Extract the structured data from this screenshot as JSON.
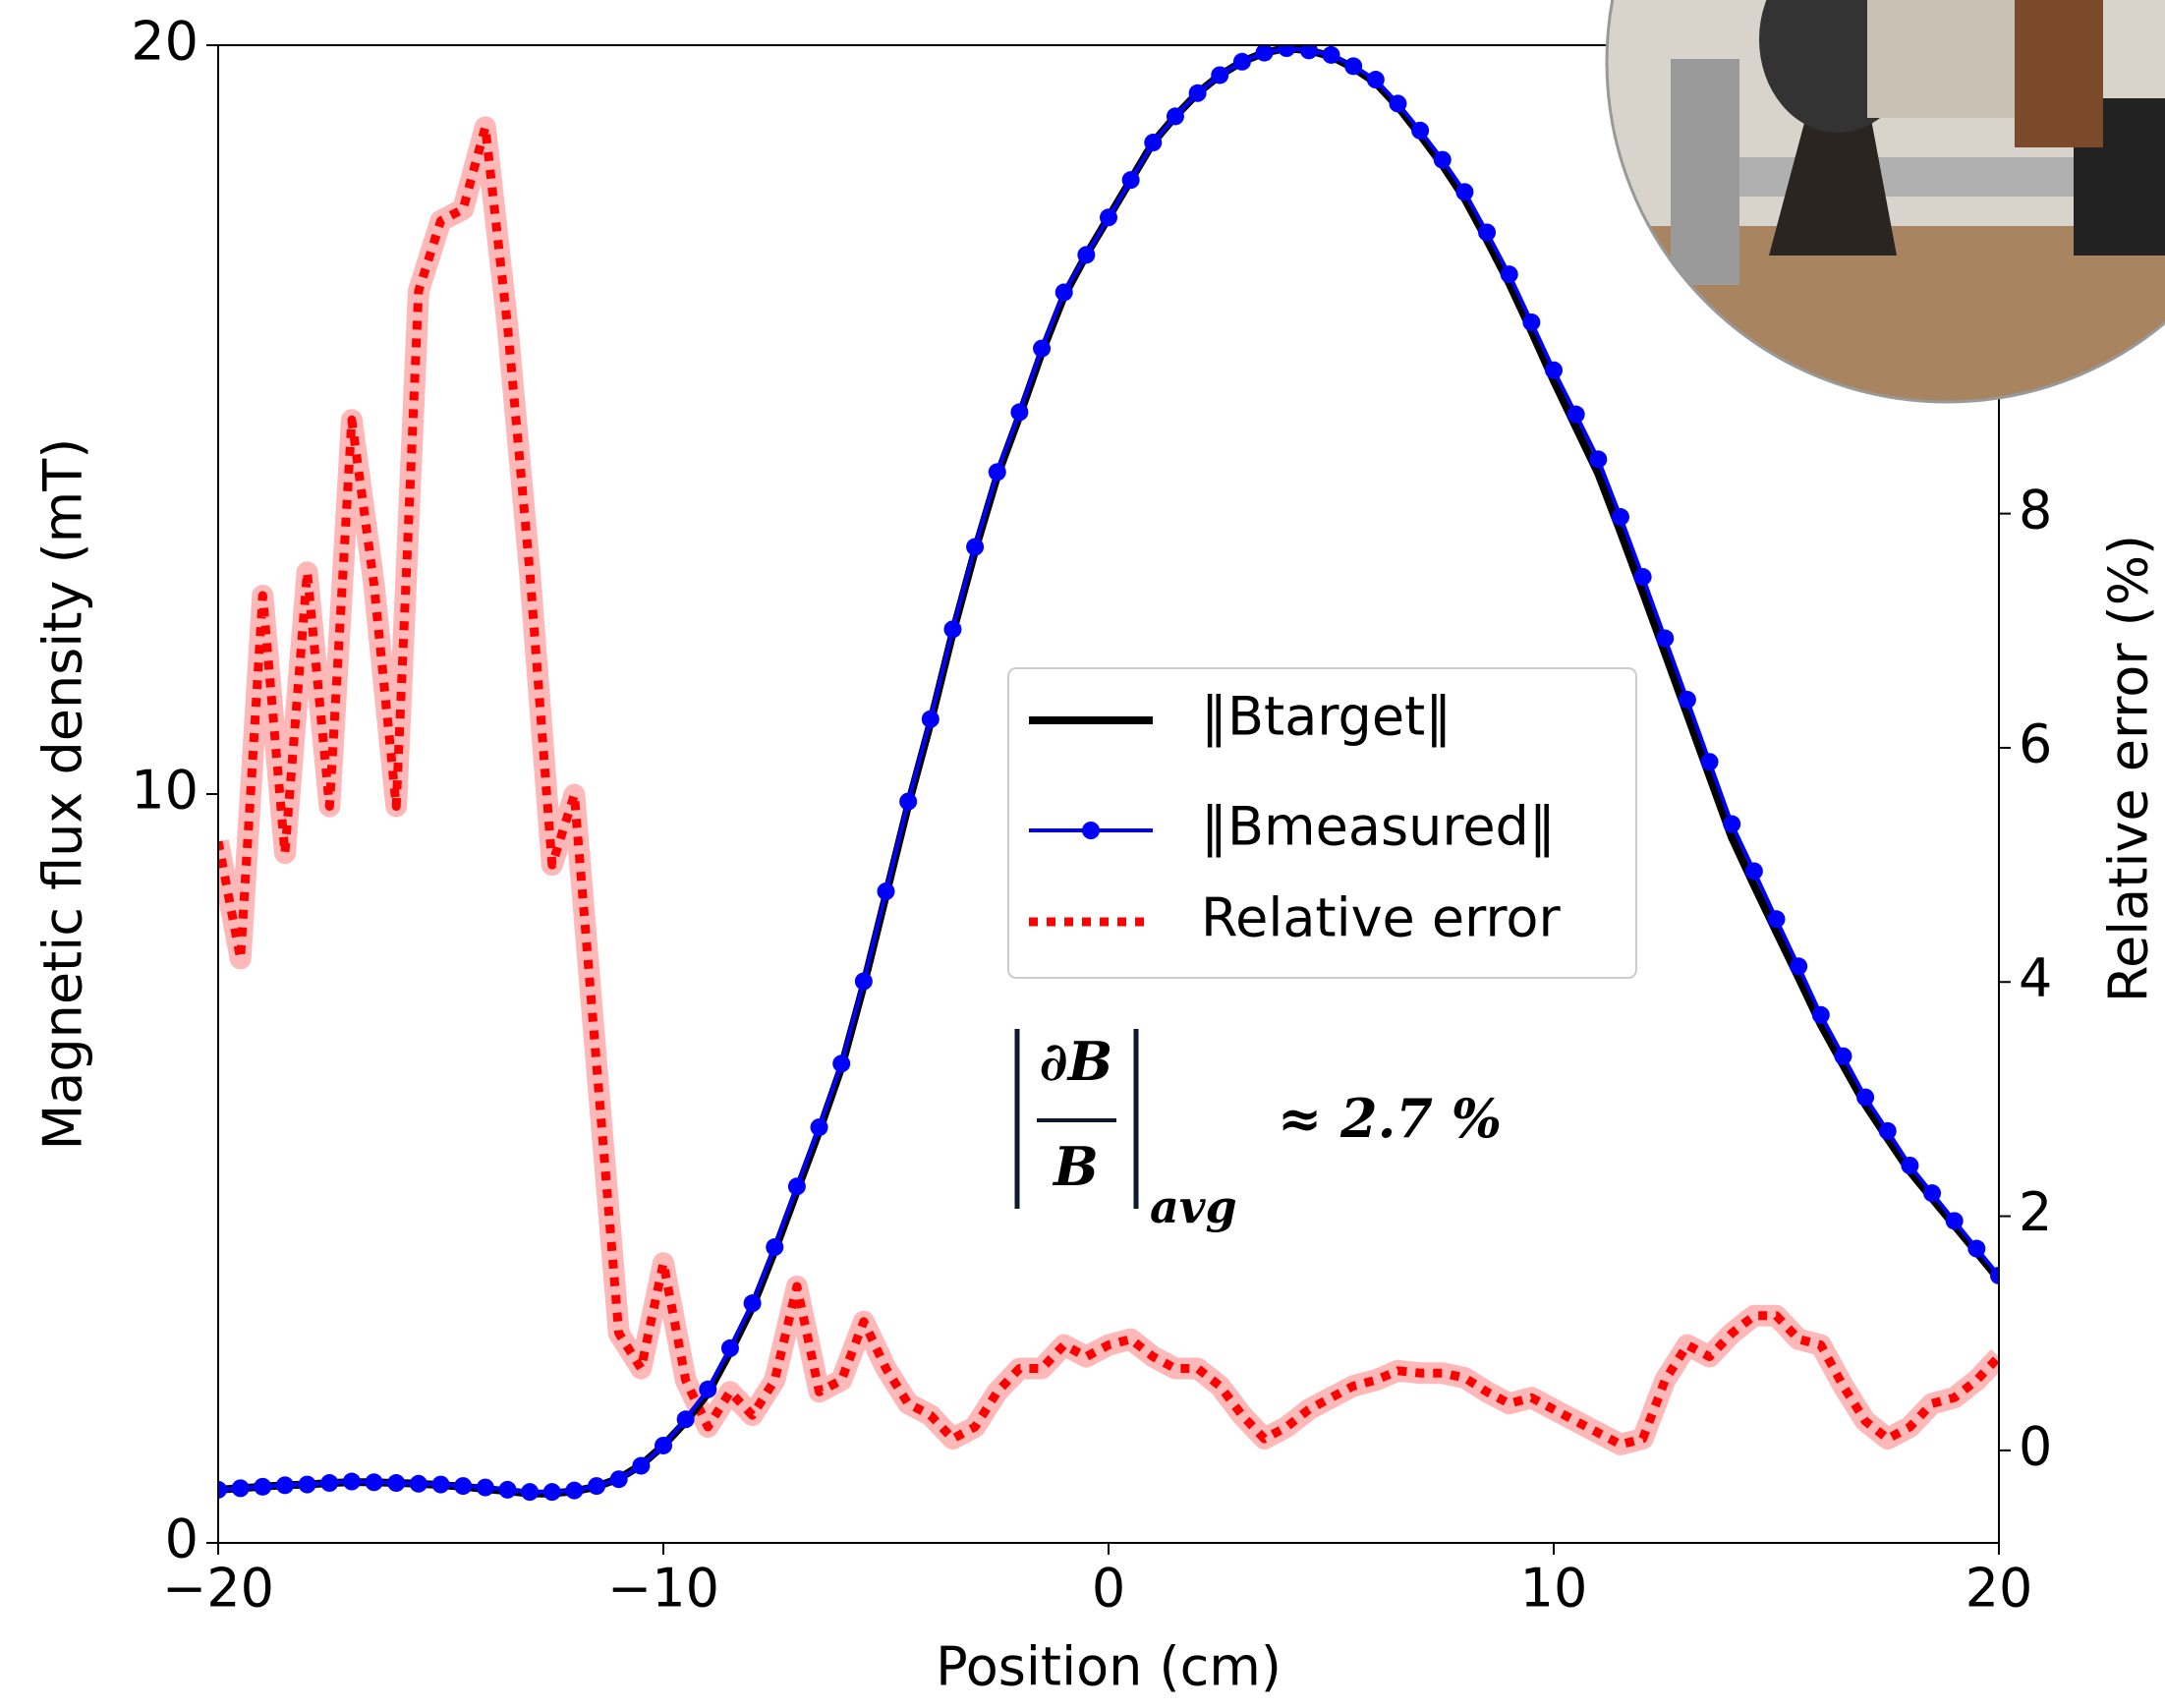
{
  "chart_data": {
    "type": "line",
    "x": [
      -20,
      -19.5,
      -19,
      -18.5,
      -18,
      -17.5,
      -17,
      -16.5,
      -16,
      -15.5,
      -15,
      -14.5,
      -14,
      -13.5,
      -13,
      -12.5,
      -12,
      -11.5,
      -11,
      -10.5,
      -10,
      -9.5,
      -9,
      -8.5,
      -8,
      -7.5,
      -7,
      -6.5,
      -6,
      -5.5,
      -5,
      -4.5,
      -4,
      -3.5,
      -3,
      -2.5,
      -2,
      -1.5,
      -1,
      -0.5,
      0,
      0.5,
      1,
      1.5,
      2,
      2.5,
      3,
      3.5,
      4,
      4.5,
      5,
      5.5,
      6,
      6.5,
      7,
      7.5,
      8,
      8.5,
      9,
      9.5,
      10,
      10.5,
      11,
      11.5,
      12,
      12.5,
      13,
      13.5,
      14,
      14.5,
      15,
      15.5,
      16,
      16.5,
      17,
      17.5,
      18,
      18.5,
      19,
      19.5,
      20
    ],
    "series": [
      {
        "name": "‖Btarget‖",
        "color": "#000000",
        "style": "solid",
        "values": [
          0.71,
          0.73,
          0.75,
          0.77,
          0.78,
          0.8,
          0.81,
          0.81,
          0.8,
          0.79,
          0.77,
          0.75,
          0.72,
          0.69,
          0.66,
          0.66,
          0.69,
          0.75,
          0.86,
          1.04,
          1.3,
          1.62,
          2.0,
          2.55,
          3.15,
          3.9,
          4.7,
          5.5,
          6.35,
          7.45,
          8.65,
          9.85,
          10.95,
          12.15,
          13.25,
          14.25,
          15.05,
          15.9,
          16.65,
          17.2,
          17.7,
          18.2,
          18.7,
          19.05,
          19.36,
          19.6,
          19.78,
          19.9,
          19.96,
          19.93,
          19.85,
          19.7,
          19.5,
          19.18,
          18.8,
          18.4,
          17.95,
          17.4,
          16.82,
          16.18,
          15.52,
          14.9,
          14.28,
          13.5,
          12.7,
          11.88,
          11.06,
          10.24,
          9.42,
          8.78,
          8.16,
          7.55,
          6.92,
          6.38,
          5.85,
          5.4,
          4.96,
          4.6,
          4.24,
          3.88,
          3.52
        ]
      },
      {
        "name": "‖Bmeasured‖",
        "color": "#0000ff",
        "style": "marker",
        "values": [
          0.71,
          0.73,
          0.75,
          0.77,
          0.78,
          0.8,
          0.82,
          0.81,
          0.8,
          0.79,
          0.78,
          0.76,
          0.74,
          0.71,
          0.68,
          0.68,
          0.7,
          0.76,
          0.85,
          1.03,
          1.3,
          1.65,
          2.05,
          2.6,
          3.2,
          3.95,
          4.76,
          5.55,
          6.4,
          7.5,
          8.7,
          9.9,
          11.0,
          12.2,
          13.3,
          14.3,
          15.1,
          15.95,
          16.7,
          17.2,
          17.7,
          18.2,
          18.7,
          19.05,
          19.36,
          19.6,
          19.78,
          19.9,
          19.96,
          19.93,
          19.87,
          19.72,
          19.54,
          19.22,
          18.86,
          18.47,
          18.04,
          17.5,
          16.94,
          16.3,
          15.66,
          15.07,
          14.47,
          13.7,
          12.9,
          12.08,
          11.26,
          10.43,
          9.6,
          8.97,
          8.33,
          7.7,
          7.05,
          6.5,
          5.95,
          5.5,
          5.04,
          4.67,
          4.3,
          3.93,
          3.57
        ]
      },
      {
        "name": "Relative error",
        "color": "#ff0000",
        "style": "dotted",
        "axis": "y2",
        "values": [
          5.2,
          4.2,
          7.3,
          5.1,
          7.5,
          5.5,
          8.8,
          7.4,
          5.5,
          9.9,
          10.5,
          10.6,
          11.3,
          9.6,
          7.5,
          5.0,
          5.6,
          3.3,
          1.0,
          0.7,
          1.6,
          0.6,
          0.2,
          0.5,
          0.3,
          0.6,
          1.4,
          0.5,
          0.6,
          1.1,
          0.7,
          0.4,
          0.3,
          0.1,
          0.2,
          0.5,
          0.7,
          0.7,
          0.9,
          0.8,
          0.9,
          0.95,
          0.8,
          0.7,
          0.7,
          0.55,
          0.3,
          0.1,
          0.2,
          0.35,
          0.45,
          0.55,
          0.6,
          0.68,
          0.66,
          0.66,
          0.62,
          0.5,
          0.4,
          0.45,
          0.35,
          0.25,
          0.15,
          0.05,
          0.1,
          0.6,
          0.9,
          0.8,
          1.0,
          1.15,
          1.15,
          0.95,
          0.9,
          0.55,
          0.25,
          0.1,
          0.2,
          0.4,
          0.45,
          0.6,
          0.8
        ]
      }
    ],
    "xlabel": "Position (cm)",
    "ylabel": "Magnetic flux density (mT)",
    "y2label": "Relative error (%)",
    "xlim": [
      -20,
      20
    ],
    "xticks": [
      {
        "value": -20,
        "label": "−20"
      },
      {
        "value": -10,
        "label": "−10"
      },
      0,
      10,
      20
    ],
    "ylim": [
      0,
      20
    ],
    "yticks": [
      0,
      10,
      20
    ],
    "y2lim": [
      -0.79,
      12.0
    ],
    "y2ticks": [
      0,
      2,
      4,
      6,
      8
    ],
    "legend": "center",
    "annotation": {
      "numerator": "∂B",
      "denominator": "B",
      "subscript": "avg",
      "text": "≈ 2.7 %"
    }
  }
}
